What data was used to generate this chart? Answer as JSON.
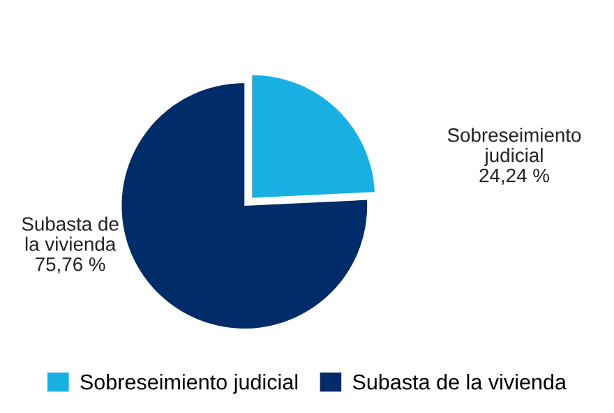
{
  "chart_data": {
    "type": "pie",
    "categories": [
      "Sobreseimiento judicial",
      "Subasta de la vivienda"
    ],
    "values": [
      24.24,
      75.76
    ],
    "colors": [
      "#18b0e2",
      "#002d6a"
    ],
    "value_labels": [
      "24,24 %",
      "75,76 %"
    ],
    "legend": "bottom"
  }
}
